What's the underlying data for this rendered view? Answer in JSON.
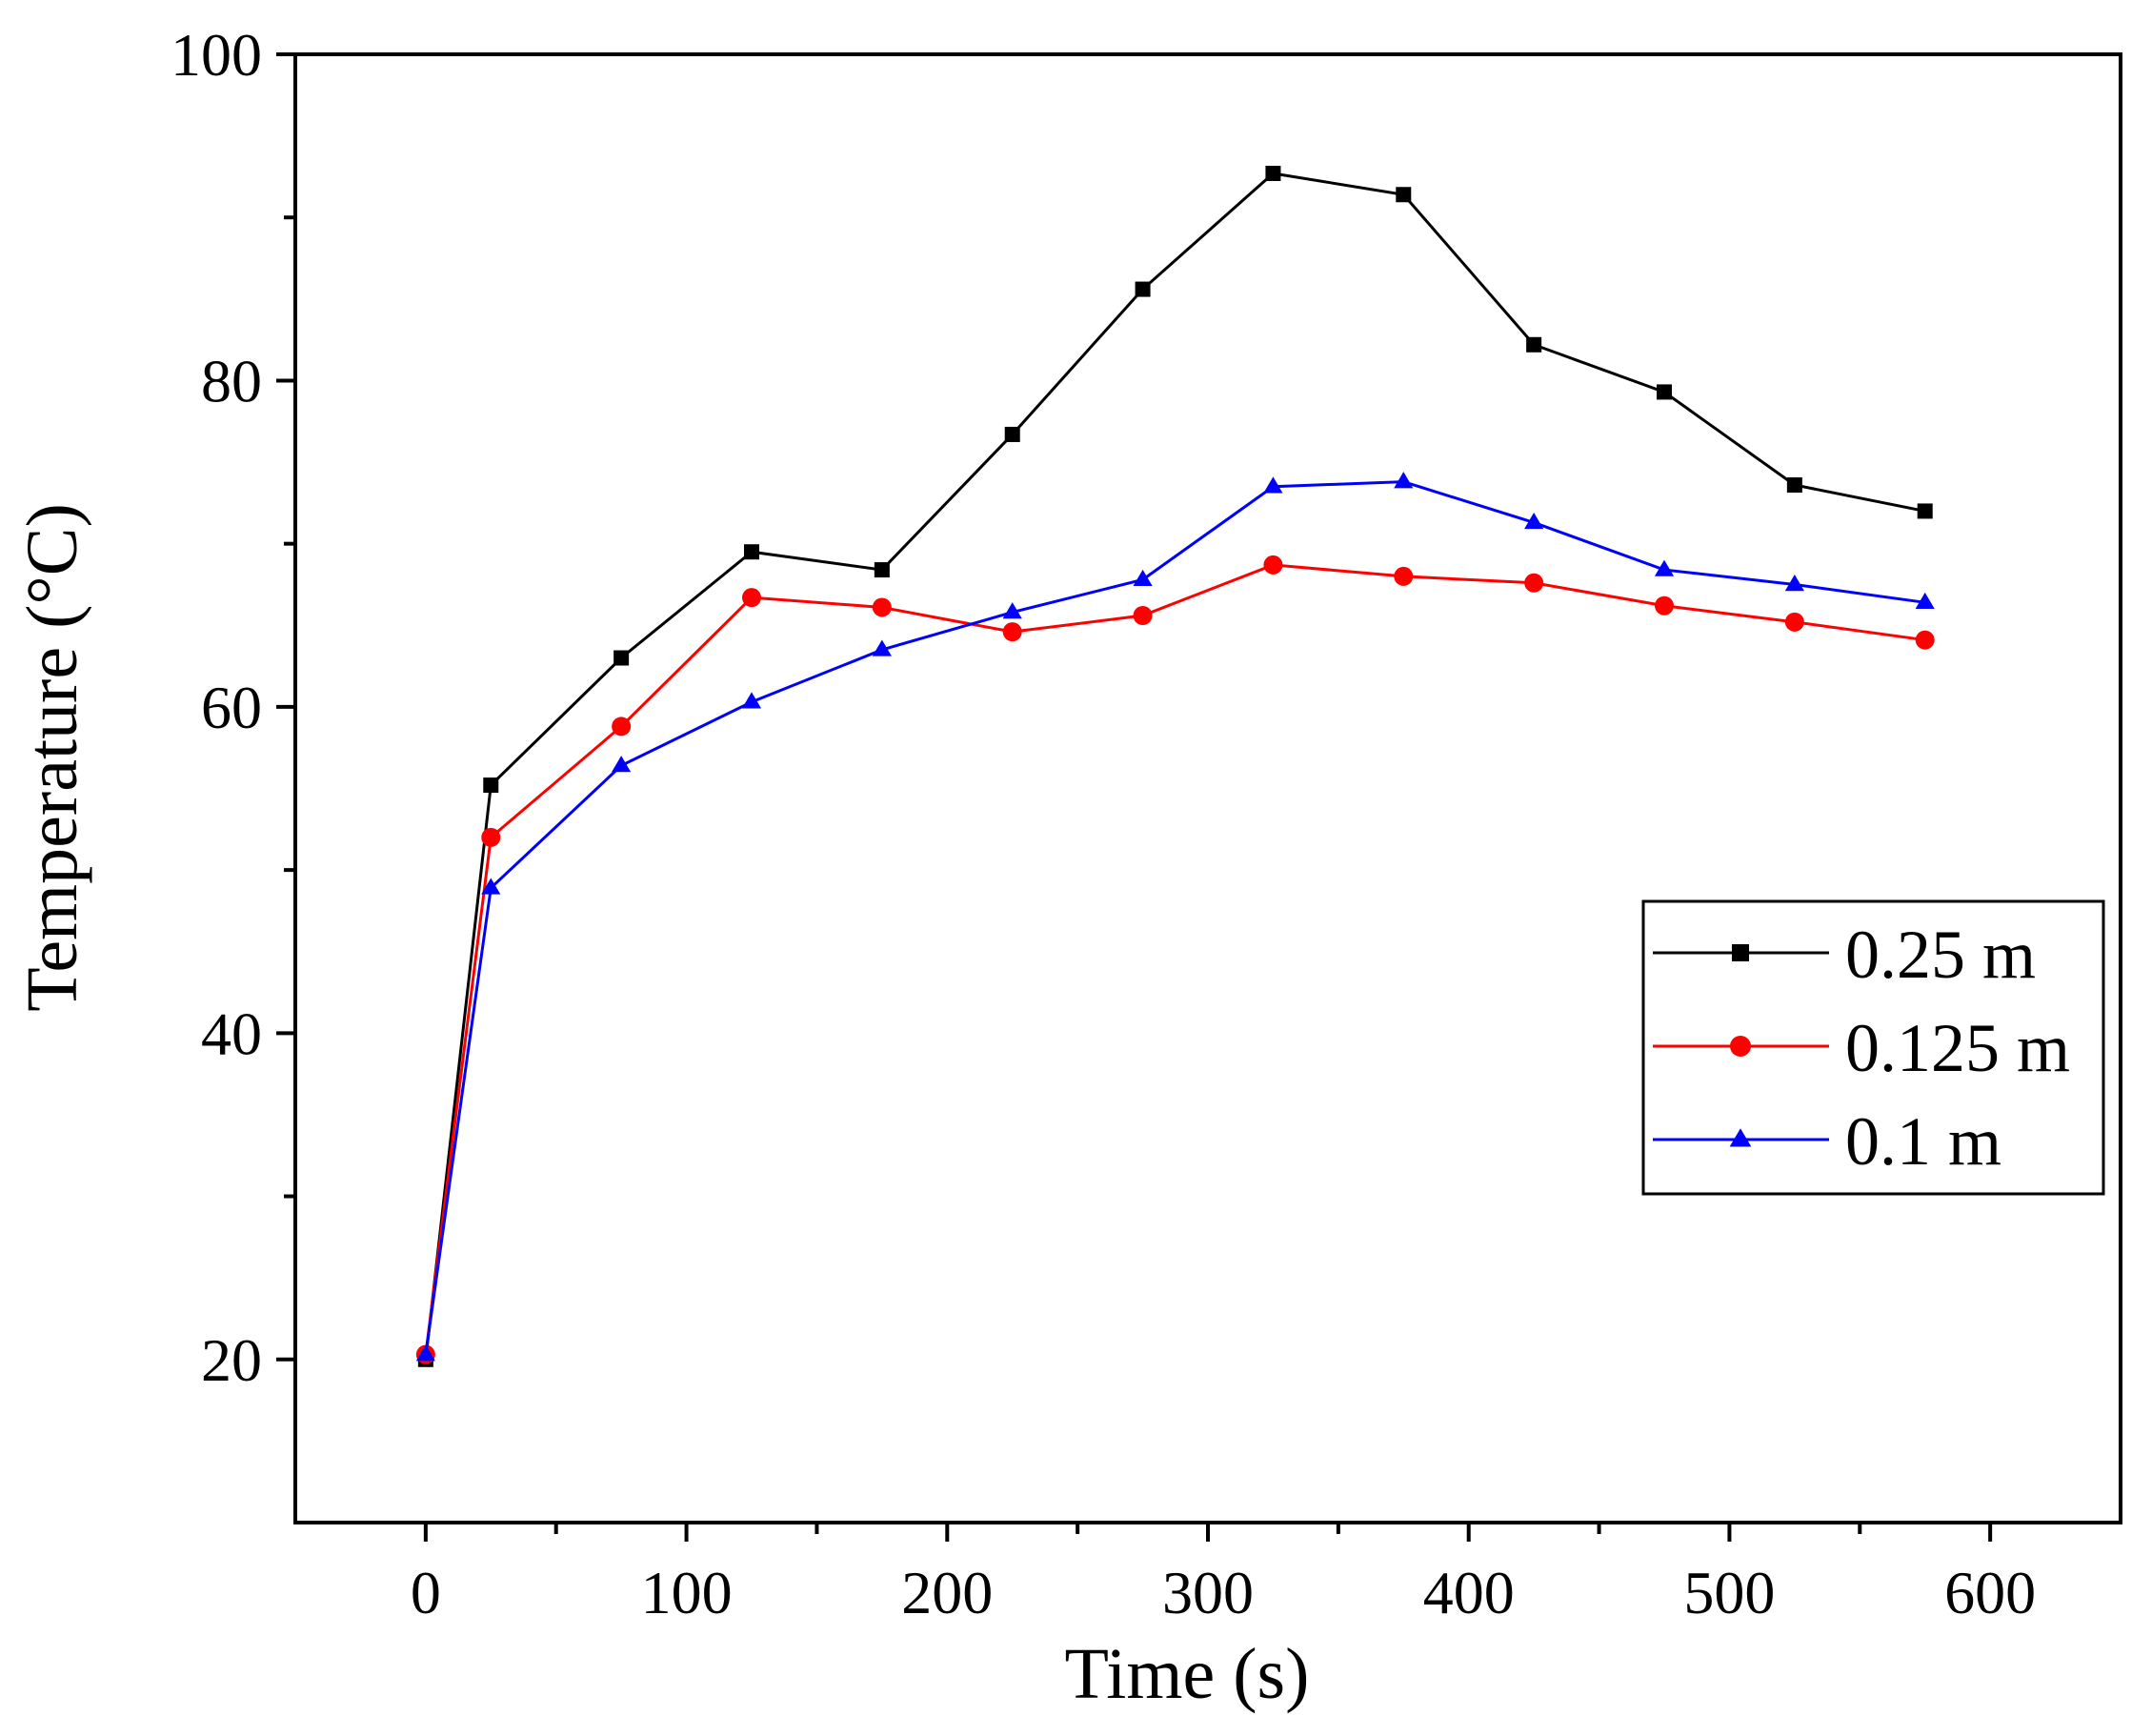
{
  "chart_data": {
    "type": "line",
    "title": "",
    "xlabel": "Time (s)",
    "ylabel": "Temperature (°C)",
    "xlim": [
      -50,
      650
    ],
    "ylim": [
      10,
      100
    ],
    "x_ticks": [
      0,
      100,
      200,
      300,
      400,
      500,
      600
    ],
    "y_ticks": [
      20,
      40,
      60,
      80,
      100
    ],
    "x_minor_ticks": [
      50,
      150,
      250,
      350,
      450,
      550
    ],
    "y_minor_ticks": [
      30,
      50,
      70,
      90
    ],
    "grid": false,
    "legend_position": "right-middle",
    "x": [
      0,
      25,
      75,
      125,
      175,
      225,
      275,
      325,
      375,
      425,
      475,
      525,
      575
    ],
    "series": [
      {
        "name": "0.25 m",
        "color": "#000000",
        "marker": "square",
        "values": [
          20.0,
          55.2,
          63.0,
          69.5,
          68.4,
          76.7,
          85.6,
          92.7,
          91.4,
          82.2,
          79.3,
          73.6,
          72.0
        ]
      },
      {
        "name": "0.125 m",
        "color": "#ff0000",
        "marker": "circle",
        "values": [
          20.3,
          52.0,
          58.8,
          66.7,
          66.1,
          64.6,
          65.6,
          68.7,
          68.0,
          67.6,
          66.2,
          65.2,
          64.1
        ]
      },
      {
        "name": "0.1 m",
        "color": "#0000ff",
        "marker": "triangle",
        "values": [
          20.3,
          48.9,
          56.4,
          60.3,
          63.5,
          65.8,
          67.8,
          73.5,
          73.8,
          71.3,
          68.4,
          67.5,
          66.4
        ]
      }
    ]
  }
}
